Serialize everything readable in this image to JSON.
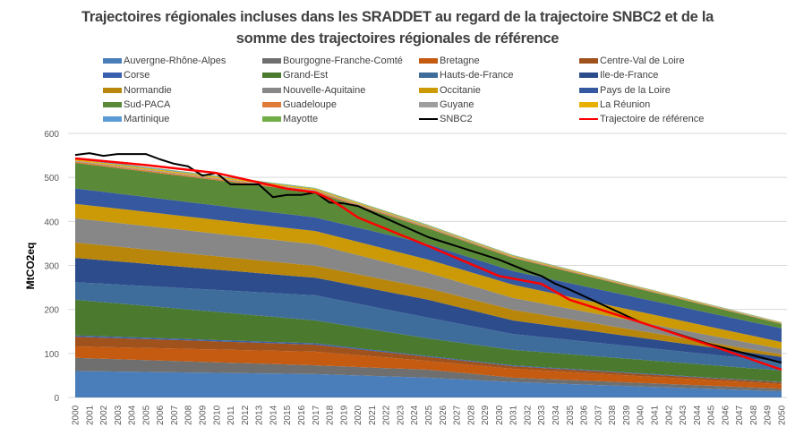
{
  "chart_data": {
    "type": "area",
    "stacked": true,
    "title": "Trajectoires régionales incluses dans les SRADDET au regard de la trajectoire SNBC2 et de la somme des trajectoires régionales de référence",
    "title_lines": [
      "Trajectoires régionales incluses dans les SRADDET au regard de la trajectoire SNBC2 et de la",
      "somme des trajectoires régionales de référence"
    ],
    "xlabel": "",
    "ylabel": "MtCO2eq",
    "ylim": [
      0,
      600
    ],
    "yticks": [
      0,
      100,
      200,
      300,
      400,
      500,
      600
    ],
    "grid": true,
    "legend_position": "top",
    "x": [
      2000,
      2001,
      2002,
      2003,
      2004,
      2005,
      2006,
      2007,
      2008,
      2009,
      2010,
      2011,
      2012,
      2013,
      2014,
      2015,
      2016,
      2017,
      2018,
      2019,
      2020,
      2021,
      2022,
      2023,
      2024,
      2025,
      2026,
      2027,
      2028,
      2029,
      2030,
      2031,
      2032,
      2033,
      2034,
      2035,
      2036,
      2037,
      2038,
      2039,
      2040,
      2041,
      2042,
      2043,
      2044,
      2045,
      2046,
      2047,
      2048,
      2049,
      2050
    ],
    "key_years": [
      2000,
      2017,
      2025,
      2031,
      2050
    ],
    "area_series": [
      {
        "name": "Auvergne-Rhône-Alpes",
        "color": "#4a7ebb",
        "key_values": [
          60,
          53,
          45,
          35,
          14
        ]
      },
      {
        "name": "Bourgogne-Franche-Comté",
        "color": "#6f6f6f",
        "key_values": [
          30,
          20,
          18,
          10,
          6
        ]
      },
      {
        "name": "Bretagne",
        "color": "#c55a11",
        "key_values": [
          26,
          31,
          20,
          20,
          10
        ]
      },
      {
        "name": "Centre-Val de Loire",
        "color": "#a0521d",
        "key_values": [
          22,
          16,
          9,
          6,
          4
        ]
      },
      {
        "name": "Corse",
        "color": "#3a5fad",
        "key_values": [
          3,
          3,
          2,
          2,
          1
        ]
      },
      {
        "name": "Grand-Est",
        "color": "#4b7a2f",
        "key_values": [
          81,
          52,
          40,
          35,
          26
        ]
      },
      {
        "name": "Hauts-de-France",
        "color": "#3e6d9c",
        "key_values": [
          40,
          57,
          47,
          36,
          20
        ]
      },
      {
        "name": "Ile-de-France",
        "color": "#2c4c8c",
        "key_values": [
          55,
          40,
          41,
          31,
          11
        ]
      },
      {
        "name": "Normandie",
        "color": "#b8860b",
        "key_values": [
          35,
          27,
          26,
          24,
          6
        ]
      },
      {
        "name": "Nouvelle-Aquitaine",
        "color": "#878787",
        "key_values": [
          55,
          49,
          35,
          27,
          12
        ]
      },
      {
        "name": "Occitanie",
        "color": "#cc9a06",
        "key_values": [
          33,
          30,
          30,
          30,
          16
        ]
      },
      {
        "name": "Pays de la Loire",
        "color": "#3558a0",
        "key_values": [
          35,
          31,
          35,
          31,
          31
        ]
      },
      {
        "name": "Sud-PACA",
        "color": "#5a8a38",
        "key_values": [
          58,
          57,
          36,
          30,
          10
        ]
      },
      {
        "name": "Guadeloupe",
        "color": "#e07b39",
        "key_values": [
          3,
          3,
          2,
          2,
          1
        ]
      },
      {
        "name": "Guyane",
        "color": "#9e9e9e",
        "key_values": [
          2,
          2,
          2,
          1,
          1
        ]
      },
      {
        "name": "La Réunion",
        "color": "#e8b000",
        "key_values": [
          3,
          3,
          2,
          2,
          1
        ]
      },
      {
        "name": "Martinique",
        "color": "#5b9bd5",
        "key_values": [
          2,
          1,
          1,
          1,
          0.5
        ]
      },
      {
        "name": "Mayotte",
        "color": "#70ad47",
        "key_values": [
          1,
          1,
          1,
          0.5,
          0.5
        ]
      }
    ],
    "line_series": [
      {
        "name": "SNBC2",
        "color": "#000000",
        "points": [
          [
            2000,
            551
          ],
          [
            2001,
            555
          ],
          [
            2002,
            549
          ],
          [
            2003,
            553
          ],
          [
            2004,
            553
          ],
          [
            2005,
            553
          ],
          [
            2006,
            541
          ],
          [
            2007,
            531
          ],
          [
            2008,
            525
          ],
          [
            2009,
            504
          ],
          [
            2010,
            510
          ],
          [
            2011,
            484
          ],
          [
            2012,
            484
          ],
          [
            2013,
            484
          ],
          [
            2014,
            455
          ],
          [
            2015,
            460
          ],
          [
            2016,
            460
          ],
          [
            2017,
            466
          ],
          [
            2018,
            443
          ],
          [
            2019,
            441
          ],
          [
            2020,
            435
          ],
          [
            2025,
            364
          ],
          [
            2030,
            313
          ],
          [
            2032,
            287
          ],
          [
            2033,
            276
          ],
          [
            2034,
            258
          ],
          [
            2035,
            245
          ],
          [
            2040,
            171
          ],
          [
            2045,
            120
          ],
          [
            2050,
            79
          ]
        ]
      },
      {
        "name": "Trajectoire de référence",
        "color": "#ff0000",
        "points": [
          [
            2000,
            543
          ],
          [
            2005,
            528
          ],
          [
            2010,
            510
          ],
          [
            2015,
            474
          ],
          [
            2017,
            466
          ],
          [
            2018,
            451
          ],
          [
            2019,
            431
          ],
          [
            2020,
            409
          ],
          [
            2025,
            344
          ],
          [
            2030,
            276
          ],
          [
            2033,
            258
          ],
          [
            2035,
            222
          ],
          [
            2040,
            171
          ],
          [
            2045,
            118
          ],
          [
            2050,
            63
          ]
        ]
      }
    ]
  },
  "legend": {
    "items": [
      {
        "label": "Auvergne-Rhône-Alpes",
        "color": "#4a7ebb",
        "kind": "area"
      },
      {
        "label": "Bourgogne-Franche-Comté",
        "color": "#6f6f6f",
        "kind": "area"
      },
      {
        "label": "Bretagne",
        "color": "#c55a11",
        "kind": "area"
      },
      {
        "label": "Centre-Val de Loire",
        "color": "#a0521d",
        "kind": "area"
      },
      {
        "label": "Corse",
        "color": "#3a5fad",
        "kind": "area"
      },
      {
        "label": "Grand-Est",
        "color": "#4b7a2f",
        "kind": "area"
      },
      {
        "label": "Hauts-de-France",
        "color": "#3e6d9c",
        "kind": "area"
      },
      {
        "label": "Ile-de-France",
        "color": "#2c4c8c",
        "kind": "area"
      },
      {
        "label": "Normandie",
        "color": "#b8860b",
        "kind": "area"
      },
      {
        "label": "Nouvelle-Aquitaine",
        "color": "#878787",
        "kind": "area"
      },
      {
        "label": "Occitanie",
        "color": "#cc9a06",
        "kind": "area"
      },
      {
        "label": "Pays de la Loire",
        "color": "#3558a0",
        "kind": "area"
      },
      {
        "label": "Sud-PACA",
        "color": "#5a8a38",
        "kind": "area"
      },
      {
        "label": "Guadeloupe",
        "color": "#e07b39",
        "kind": "area"
      },
      {
        "label": "Guyane",
        "color": "#9e9e9e",
        "kind": "area"
      },
      {
        "label": "La Réunion",
        "color": "#e8b000",
        "kind": "area"
      },
      {
        "label": "Martinique",
        "color": "#5b9bd5",
        "kind": "area"
      },
      {
        "label": "Mayotte",
        "color": "#70ad47",
        "kind": "area"
      },
      {
        "label": "SNBC2",
        "color": "#000000",
        "kind": "line"
      },
      {
        "label": "Trajectoire de référence",
        "color": "#ff0000",
        "kind": "line"
      }
    ]
  }
}
